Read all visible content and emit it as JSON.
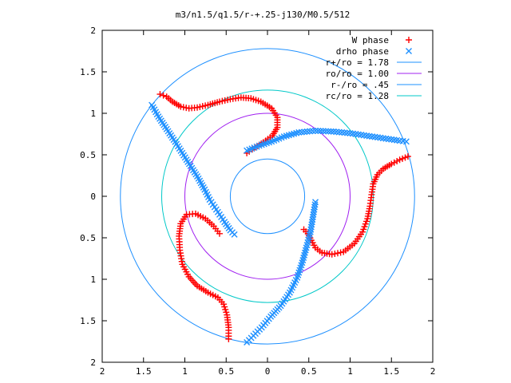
{
  "chart_data": {
    "type": "scatter",
    "title": "m3/n1.5/q1.5/r-+.25-j130/M0.5/512",
    "xlabel": "",
    "ylabel": "",
    "xlim": [
      -2,
      2
    ],
    "ylim": [
      -2,
      2
    ],
    "x_tick_labels": [
      "2",
      "1.5",
      "1",
      "0.5",
      "0",
      "0.5",
      "1",
      "1.5",
      "2"
    ],
    "y_tick_labels": [
      "2",
      "1.5",
      "1",
      "0.5",
      "0",
      "0.5",
      "1",
      "1.5",
      "2"
    ],
    "grid": false,
    "legend_position": "top-right",
    "series": [
      {
        "name": "W phase",
        "marker": "+",
        "color": "#ff0000",
        "points": [
          [
            -1.3,
            1.23
          ],
          [
            -1.22,
            1.2
          ],
          [
            -1.15,
            1.14
          ],
          [
            -1.05,
            1.08
          ],
          [
            -0.95,
            1.06
          ],
          [
            -0.85,
            1.07
          ],
          [
            -0.72,
            1.1
          ],
          [
            -0.58,
            1.14
          ],
          [
            -0.45,
            1.17
          ],
          [
            -0.32,
            1.19
          ],
          [
            -0.2,
            1.18
          ],
          [
            -0.08,
            1.14
          ],
          [
            0.05,
            1.06
          ],
          [
            0.12,
            0.95
          ],
          [
            0.12,
            0.83
          ],
          [
            0.06,
            0.73
          ],
          [
            -0.05,
            0.65
          ],
          [
            -0.15,
            0.59
          ],
          [
            -0.22,
            0.54
          ],
          [
            -0.25,
            0.52
          ],
          [
            1.7,
            0.48
          ],
          [
            1.6,
            0.44
          ],
          [
            1.5,
            0.39
          ],
          [
            1.4,
            0.33
          ],
          [
            1.33,
            0.26
          ],
          [
            1.28,
            0.15
          ],
          [
            1.26,
            0.02
          ],
          [
            1.24,
            -0.12
          ],
          [
            1.21,
            -0.27
          ],
          [
            1.15,
            -0.43
          ],
          [
            1.05,
            -0.57
          ],
          [
            0.92,
            -0.67
          ],
          [
            0.78,
            -0.7
          ],
          [
            0.66,
            -0.68
          ],
          [
            0.58,
            -0.62
          ],
          [
            0.53,
            -0.53
          ],
          [
            0.49,
            -0.45
          ],
          [
            0.44,
            -0.4
          ],
          [
            -0.58,
            -0.45
          ],
          [
            -0.65,
            -0.36
          ],
          [
            -0.75,
            -0.27
          ],
          [
            -0.87,
            -0.21
          ],
          [
            -0.98,
            -0.22
          ],
          [
            -1.05,
            -0.33
          ],
          [
            -1.07,
            -0.48
          ],
          [
            -1.06,
            -0.65
          ],
          [
            -1.03,
            -0.82
          ],
          [
            -0.95,
            -0.97
          ],
          [
            -0.85,
            -1.08
          ],
          [
            -0.72,
            -1.16
          ],
          [
            -0.6,
            -1.22
          ],
          [
            -0.53,
            -1.3
          ],
          [
            -0.49,
            -1.43
          ],
          [
            -0.47,
            -1.58
          ],
          [
            -0.47,
            -1.72
          ]
        ]
      },
      {
        "name": "drho phase",
        "marker": "x",
        "color": "#1e90ff",
        "points": [
          [
            -1.4,
            1.1
          ],
          [
            -1.32,
            0.96
          ],
          [
            -1.22,
            0.81
          ],
          [
            -1.1,
            0.63
          ],
          [
            -0.98,
            0.44
          ],
          [
            -0.85,
            0.24
          ],
          [
            -0.76,
            0.08
          ],
          [
            -0.7,
            -0.04
          ],
          [
            -0.64,
            -0.13
          ],
          [
            -0.58,
            -0.22
          ],
          [
            -0.52,
            -0.31
          ],
          [
            -0.45,
            -0.41
          ],
          [
            -0.4,
            -0.46
          ],
          [
            -0.25,
            0.55
          ],
          [
            -0.1,
            0.61
          ],
          [
            0.05,
            0.66
          ],
          [
            0.2,
            0.72
          ],
          [
            0.38,
            0.77
          ],
          [
            0.58,
            0.79
          ],
          [
            0.8,
            0.78
          ],
          [
            1.0,
            0.76
          ],
          [
            1.2,
            0.73
          ],
          [
            1.4,
            0.7
          ],
          [
            1.6,
            0.67
          ],
          [
            1.68,
            0.66
          ],
          [
            -0.25,
            -1.76
          ],
          [
            -0.17,
            -1.68
          ],
          [
            -0.07,
            -1.58
          ],
          [
            0.04,
            -1.45
          ],
          [
            0.16,
            -1.32
          ],
          [
            0.27,
            -1.16
          ],
          [
            0.36,
            -0.98
          ],
          [
            0.42,
            -0.8
          ],
          [
            0.47,
            -0.62
          ],
          [
            0.52,
            -0.43
          ],
          [
            0.55,
            -0.25
          ],
          [
            0.58,
            -0.07
          ]
        ]
      }
    ],
    "reference_circles": [
      {
        "label": "r+/ro = 1.78",
        "radius": 1.78,
        "color": "#1e90ff"
      },
      {
        "label": "ro/ro = 1.00",
        "radius": 1.0,
        "color": "#a020f0"
      },
      {
        "label": "r-/ro = .45",
        "radius": 0.45,
        "color": "#1e90ff"
      },
      {
        "label": "rc/ro = 1.28",
        "radius": 1.28,
        "color": "#00c8c8"
      }
    ]
  }
}
